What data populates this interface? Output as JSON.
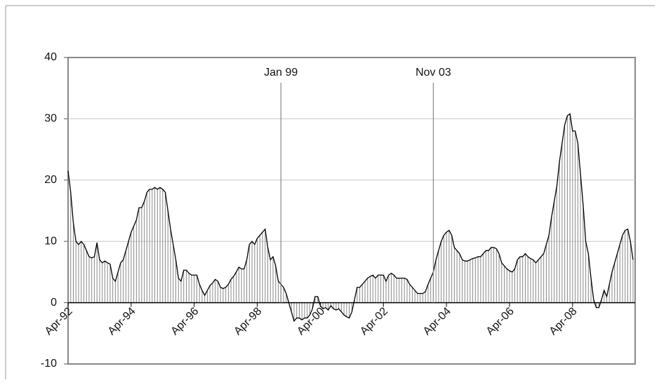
{
  "chart_data": {
    "type": "bar-line",
    "categories": [
      "Apr-92",
      null,
      null,
      null,
      null,
      null,
      null,
      null,
      null,
      null,
      null,
      null,
      null,
      null,
      null,
      null,
      null,
      null,
      null,
      null,
      null,
      null,
      null,
      null,
      "Apr-94",
      null,
      null,
      null,
      null,
      null,
      null,
      null,
      null,
      null,
      null,
      null,
      null,
      null,
      null,
      null,
      null,
      null,
      null,
      null,
      null,
      null,
      null,
      null,
      "Apr-96",
      null,
      null,
      null,
      null,
      null,
      null,
      null,
      null,
      null,
      null,
      null,
      null,
      null,
      null,
      null,
      null,
      null,
      null,
      null,
      null,
      null,
      null,
      null,
      "Apr-98",
      null,
      null,
      null,
      null,
      null,
      null,
      null,
      null,
      null,
      null,
      null,
      null,
      null,
      null,
      null,
      null,
      null,
      null,
      null,
      null,
      null,
      null,
      null,
      "Apr-00",
      null,
      null,
      null,
      null,
      null,
      null,
      null,
      null,
      null,
      null,
      null,
      null,
      null,
      null,
      null,
      null,
      null,
      null,
      null,
      null,
      null,
      null,
      null,
      "Apr-02",
      null,
      null,
      null,
      null,
      null,
      null,
      null,
      null,
      null,
      null,
      null,
      null,
      null,
      null,
      null,
      null,
      null,
      null,
      null,
      null,
      null,
      null,
      null,
      "Apr-04",
      null,
      null,
      null,
      null,
      null,
      null,
      null,
      null,
      null,
      null,
      null,
      null,
      null,
      null,
      null,
      null,
      null,
      null,
      null,
      null,
      null,
      null,
      null,
      "Apr-06",
      null,
      null,
      null,
      null,
      null,
      null,
      null,
      null,
      null,
      null,
      null,
      null,
      null,
      null,
      null,
      null,
      null,
      null,
      null,
      null,
      null,
      null,
      null,
      "Apr-08",
      null,
      null,
      null,
      null,
      null,
      null,
      null,
      null,
      null,
      null,
      null,
      null,
      null,
      null,
      null,
      null,
      null,
      null,
      null,
      null,
      null,
      null,
      null
    ],
    "values": [
      21.5,
      18,
      13,
      10,
      9.5,
      10,
      9.5,
      8.5,
      7.5,
      7.3,
      7.5,
      9.8,
      7,
      6.5,
      6.8,
      6.5,
      6.3,
      4,
      3.5,
      5,
      6.5,
      7,
      8.5,
      10,
      11.5,
      12.5,
      13.5,
      15.5,
      15.5,
      16.5,
      18,
      18.5,
      18.5,
      18.8,
      18.5,
      18.8,
      18.5,
      18,
      15,
      12,
      9.5,
      7,
      4,
      3.5,
      5.3,
      5.3,
      4.8,
      4.5,
      4.5,
      4.5,
      3,
      2,
      1.2,
      2,
      2.8,
      3.2,
      3.8,
      3.5,
      2.5,
      2.3,
      2.5,
      3,
      3.8,
      4.3,
      5,
      5.8,
      5.5,
      5.5,
      7,
      9.5,
      10,
      9.5,
      10.5,
      11,
      11.5,
      12,
      9,
      7,
      7.5,
      6,
      3.5,
      3,
      2.5,
      1.5,
      0,
      -1.5,
      -3,
      -2.5,
      -2.5,
      -2.8,
      -2.5,
      -2.5,
      -2,
      -1,
      1,
      1,
      -0.5,
      -1,
      -0.8,
      -1.2,
      -0.5,
      -1,
      -1.2,
      -1,
      -1.5,
      -2,
      -2.3,
      -2.5,
      -1.5,
      0.5,
      2.5,
      2.5,
      3,
      3.5,
      4,
      4.3,
      4.5,
      4,
      4.5,
      4.5,
      4.5,
      3.5,
      4.5,
      4.8,
      4.5,
      4,
      4,
      4,
      4,
      3.8,
      3,
      2.5,
      2,
      1.5,
      1.5,
      1.5,
      1.8,
      3,
      4,
      5,
      7,
      8.5,
      10,
      11,
      11.5,
      11.8,
      11,
      9,
      8.5,
      8,
      7,
      6.8,
      6.8,
      7,
      7.2,
      7.3,
      7.5,
      7.5,
      8,
      8.5,
      8.5,
      9,
      9,
      8.8,
      8,
      6.5,
      6,
      5.5,
      5.2,
      5,
      5.5,
      7,
      7.5,
      7.5,
      8,
      7.5,
      7.2,
      7,
      6.5,
      7,
      7.5,
      8,
      9.5,
      11,
      14,
      16.5,
      19,
      23,
      26,
      29,
      30.5,
      30.8,
      28,
      28,
      26,
      21,
      16,
      10,
      8,
      4,
      0.5,
      -0.8,
      -0.8,
      0.5,
      2,
      1,
      3,
      5,
      6.5,
      8,
      9.5,
      11,
      11.8,
      12,
      10,
      7
    ],
    "bar_color": "#888888",
    "line_color": "#000000",
    "ylim": [
      -10,
      40
    ],
    "yticks": [
      -10,
      0,
      10,
      20,
      30,
      40
    ],
    "grid": true,
    "annotations": [
      {
        "text": "Jan 99",
        "at": 81
      },
      {
        "text": "Nov 03",
        "at": 139
      }
    ]
  }
}
